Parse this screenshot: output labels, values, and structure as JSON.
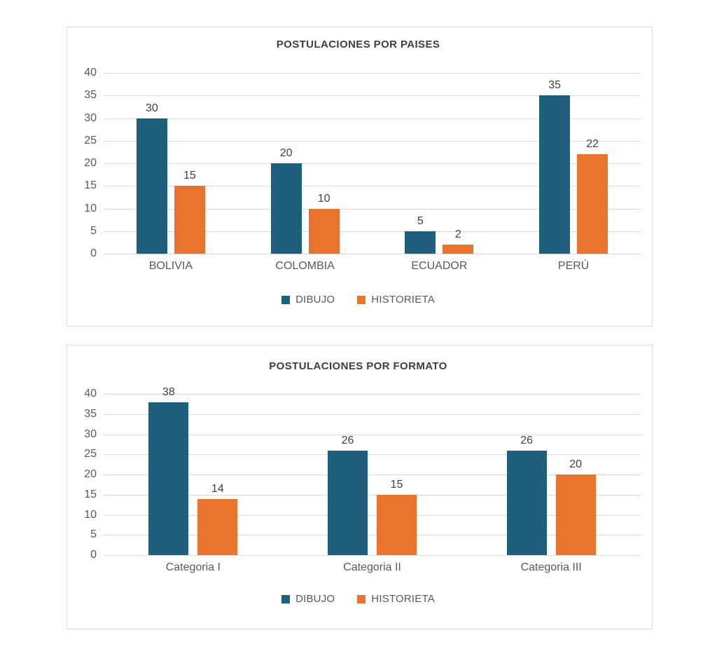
{
  "colors": {
    "dibujo": "#1f5f7e",
    "historieta": "#e8742e",
    "grid": "#d9d9d9",
    "axis_text": "#595959",
    "value_text": "#3f3f3f",
    "title_text": "#3e3e3e",
    "panel_border": "#d8d8d8",
    "background": "#ffffff"
  },
  "chart_data": [
    {
      "type": "bar",
      "title": "POSTULACIONES POR PAISES",
      "categories": [
        "BOLIVIA",
        "COLOMBIA",
        "ECUADOR",
        "PERÚ"
      ],
      "series": [
        {
          "name": "DIBUJO",
          "color": "#1f5f7e",
          "values": [
            30,
            20,
            5,
            35
          ]
        },
        {
          "name": "HISTORIETA",
          "color": "#e8742e",
          "values": [
            15,
            10,
            2,
            22
          ]
        }
      ],
      "xlabel": "",
      "ylabel": "",
      "ylim": [
        0,
        40
      ],
      "y_ticks": [
        0,
        5,
        10,
        15,
        20,
        25,
        30,
        35,
        40
      ],
      "grid": true,
      "data_labels": true,
      "legend_position": "bottom"
    },
    {
      "type": "bar",
      "title": "POSTULACIONES POR FORMATO",
      "categories": [
        "Categoria I",
        "Categoria II",
        "Categoria III"
      ],
      "series": [
        {
          "name": "DIBUJO",
          "color": "#1f5f7e",
          "values": [
            38,
            26,
            26
          ]
        },
        {
          "name": "HISTORIETA",
          "color": "#e8742e",
          "values": [
            14,
            15,
            20
          ]
        }
      ],
      "xlabel": "",
      "ylabel": "",
      "ylim": [
        0,
        40
      ],
      "y_ticks": [
        0,
        5,
        10,
        15,
        20,
        25,
        30,
        35,
        40
      ],
      "grid": true,
      "data_labels": true,
      "legend_position": "bottom"
    }
  ]
}
